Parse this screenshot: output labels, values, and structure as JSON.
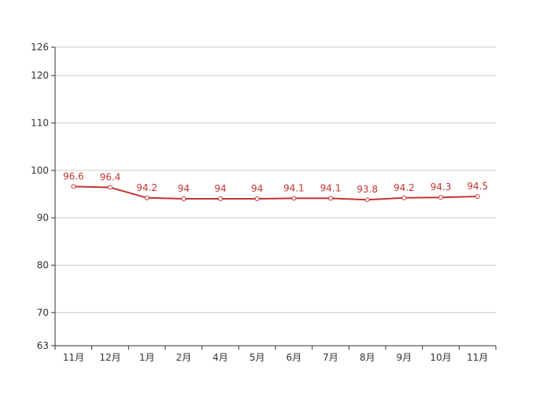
{
  "chart_data": {
    "type": "line",
    "title": "",
    "xlabel": "",
    "ylabel": "",
    "categories": [
      "11月",
      "12月",
      "1月",
      "2月",
      "4月",
      "5月",
      "6月",
      "7月",
      "8月",
      "9月",
      "10月",
      "11月"
    ],
    "series": [
      {
        "values": [
          96.6,
          96.4,
          94.2,
          94,
          94,
          94,
          94.1,
          94.1,
          93.8,
          94.2,
          94.3,
          94.5
        ],
        "labels": [
          "96.6",
          "96.4",
          "94.2",
          "94",
          "94",
          "94",
          "94.1",
          "94.1",
          "93.8",
          "94.2",
          "94.3",
          "94.5"
        ],
        "color": "#c23531"
      }
    ],
    "yticks": [
      63,
      70,
      80,
      90,
      100,
      110,
      120,
      126
    ],
    "ytick_labels": [
      "63",
      "70",
      "80",
      "90",
      "100",
      "110",
      "120",
      "126"
    ],
    "ylim": [
      63,
      126
    ],
    "grid": true,
    "legend": "none",
    "colors": {
      "line": "#c23531",
      "grid": "#cccccc",
      "axis": "#333333",
      "text": "#333333"
    }
  }
}
